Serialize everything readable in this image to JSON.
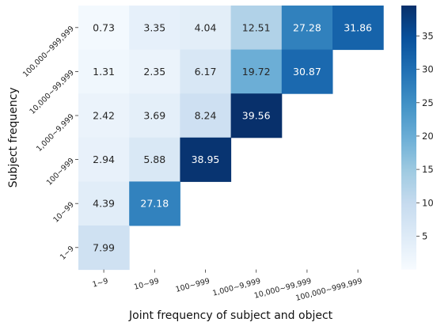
{
  "chart_data": {
    "type": "heatmap",
    "xlabel": "Joint frequency of subject and object",
    "ylabel": "Subject frequency",
    "x_categories": [
      "1~9",
      "10~99",
      "100~999",
      "1,000~9,999",
      "10,000~99,999",
      "100,000~999,999"
    ],
    "y_categories": [
      "100,000~999,999",
      "10,000~99,999",
      "1,000~9,999",
      "100~999",
      "10~99",
      "1~9"
    ],
    "values": [
      [
        0.73,
        3.35,
        4.04,
        12.51,
        27.28,
        31.86
      ],
      [
        1.31,
        2.35,
        6.17,
        19.72,
        30.87,
        null
      ],
      [
        2.42,
        3.69,
        8.24,
        39.56,
        null,
        null
      ],
      [
        2.94,
        5.88,
        38.95,
        null,
        null,
        null
      ],
      [
        4.39,
        27.18,
        null,
        null,
        null,
        null
      ],
      [
        7.99,
        null,
        null,
        null,
        null,
        null
      ]
    ],
    "value_labels": [
      [
        "0.73",
        "3.35",
        "4.04",
        "12.51",
        "27.28",
        "31.86"
      ],
      [
        "1.31",
        "2.35",
        "6.17",
        "19.72",
        "30.87",
        ""
      ],
      [
        "2.42",
        "3.69",
        "8.24",
        "39.56",
        "",
        ""
      ],
      [
        "2.94",
        "5.88",
        "38.95",
        "",
        "",
        ""
      ],
      [
        "4.39",
        "27.18",
        "",
        "",
        "",
        ""
      ],
      [
        "7.99",
        "",
        "",
        "",
        "",
        ""
      ]
    ],
    "colormap": "Blues",
    "color_range": [
      0,
      39.56
    ],
    "colorbar_ticks": [
      5,
      10,
      15,
      20,
      25,
      30,
      35
    ],
    "colorbar_tick_labels": [
      "5",
      "10",
      "15",
      "20",
      "25",
      "30",
      "35"
    ],
    "colorbar_placement": "right",
    "grid": false
  }
}
